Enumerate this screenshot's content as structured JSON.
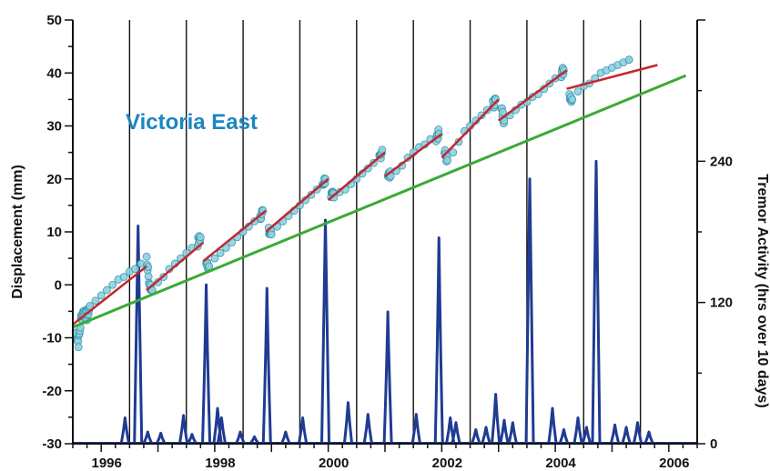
{
  "chart_data": {
    "type": "line",
    "annotation": "Victoria East",
    "ylabel": "Displacement (mm)",
    "y2label": "Tremor Activity (hrs over 10 days)",
    "xlim": [
      1995.5,
      2006.5
    ],
    "ylim": [
      -30,
      50
    ],
    "y2lim": [
      0,
      360
    ],
    "x_ticks": [
      1996,
      1998,
      2000,
      2002,
      2004,
      2006
    ],
    "x_tick_labels": [
      "1996",
      "1998",
      "2000",
      "2002",
      "2004",
      "2006"
    ],
    "y_ticks": [
      -30,
      -20,
      -10,
      0,
      10,
      20,
      30,
      40,
      50
    ],
    "y_tick_labels": [
      "-30",
      "-20",
      "-10",
      "0",
      "10",
      "20",
      "30",
      "40",
      "50"
    ],
    "y2_ticks": [
      0,
      120,
      240
    ],
    "y2_tick_labels": [
      "0",
      "120",
      "240"
    ],
    "event_lines": [
      1996.5,
      1997.5,
      1998.5,
      1999.5,
      2000.5,
      2001.5,
      2002.5,
      2003.5,
      2004.5,
      2005.5
    ],
    "background_trend": {
      "x": [
        1995.5,
        2006.3
      ],
      "y": [
        -8,
        39.5
      ]
    },
    "segment_fits": [
      {
        "x": [
          1995.5,
          1996.8
        ],
        "y": [
          -7.5,
          3.5
        ]
      },
      {
        "x": [
          1996.8,
          1997.8
        ],
        "y": [
          -1,
          8
        ]
      },
      {
        "x": [
          1997.8,
          1998.9
        ],
        "y": [
          4.5,
          14
        ]
      },
      {
        "x": [
          1998.9,
          2000.0
        ],
        "y": [
          10,
          20
        ]
      },
      {
        "x": [
          2000.0,
          2001.0
        ],
        "y": [
          16,
          25
        ]
      },
      {
        "x": [
          2001.0,
          2002.0
        ],
        "y": [
          20.5,
          28.5
        ]
      },
      {
        "x": [
          2002.0,
          2003.0
        ],
        "y": [
          24,
          35
        ]
      },
      {
        "x": [
          2003.0,
          2004.2
        ],
        "y": [
          31,
          40.5
        ]
      },
      {
        "x": [
          2004.2,
          2005.8
        ],
        "y": [
          37,
          41.5
        ]
      }
    ],
    "gps_points": [
      [
        1995.55,
        -9
      ],
      [
        1995.6,
        -11
      ],
      [
        1995.65,
        -6
      ],
      [
        1995.7,
        -5
      ],
      [
        1995.75,
        -6
      ],
      [
        1995.8,
        -4
      ],
      [
        1995.9,
        -3
      ],
      [
        1996.0,
        -2
      ],
      [
        1996.1,
        -1
      ],
      [
        1996.2,
        0
      ],
      [
        1996.3,
        1
      ],
      [
        1996.4,
        1.5
      ],
      [
        1996.5,
        2.5
      ],
      [
        1996.6,
        3
      ],
      [
        1996.7,
        4
      ],
      [
        1996.8,
        5
      ],
      [
        1996.85,
        0
      ],
      [
        1996.9,
        -1
      ],
      [
        1997.0,
        0.5
      ],
      [
        1997.1,
        1.5
      ],
      [
        1997.2,
        3
      ],
      [
        1997.3,
        4
      ],
      [
        1997.4,
        5
      ],
      [
        1997.5,
        6
      ],
      [
        1997.6,
        7
      ],
      [
        1997.7,
        8
      ],
      [
        1997.75,
        9
      ],
      [
        1997.85,
        4
      ],
      [
        1997.9,
        3.5
      ],
      [
        1998.0,
        5
      ],
      [
        1998.1,
        6
      ],
      [
        1998.2,
        7
      ],
      [
        1998.3,
        8
      ],
      [
        1998.4,
        9
      ],
      [
        1998.5,
        10
      ],
      [
        1998.6,
        11
      ],
      [
        1998.7,
        12
      ],
      [
        1998.8,
        13
      ],
      [
        1998.85,
        14
      ],
      [
        1998.95,
        10
      ],
      [
        1999.0,
        9.5
      ],
      [
        1999.1,
        11
      ],
      [
        1999.2,
        12
      ],
      [
        1999.3,
        13
      ],
      [
        1999.4,
        14
      ],
      [
        1999.5,
        15
      ],
      [
        1999.6,
        16
      ],
      [
        1999.7,
        17
      ],
      [
        1999.8,
        18
      ],
      [
        1999.9,
        19
      ],
      [
        1999.95,
        20
      ],
      [
        2000.05,
        17
      ],
      [
        2000.1,
        16.5
      ],
      [
        2000.2,
        17.5
      ],
      [
        2000.3,
        18
      ],
      [
        2000.4,
        19
      ],
      [
        2000.5,
        20
      ],
      [
        2000.6,
        21
      ],
      [
        2000.7,
        22
      ],
      [
        2000.8,
        23
      ],
      [
        2000.9,
        24
      ],
      [
        2000.95,
        25.5
      ],
      [
        2001.05,
        21
      ],
      [
        2001.1,
        20.5
      ],
      [
        2001.2,
        21.5
      ],
      [
        2001.3,
        22.5
      ],
      [
        2001.4,
        24
      ],
      [
        2001.5,
        25
      ],
      [
        2001.6,
        26
      ],
      [
        2001.7,
        26.5
      ],
      [
        2001.8,
        27.5
      ],
      [
        2001.9,
        28
      ],
      [
        2001.95,
        28.5
      ],
      [
        2002.05,
        25
      ],
      [
        2002.1,
        23.5
      ],
      [
        2002.2,
        25
      ],
      [
        2002.3,
        27
      ],
      [
        2002.4,
        29
      ],
      [
        2002.5,
        30
      ],
      [
        2002.6,
        31
      ],
      [
        2002.7,
        32
      ],
      [
        2002.8,
        33
      ],
      [
        2002.9,
        34
      ],
      [
        2002.95,
        35
      ],
      [
        2003.05,
        33
      ],
      [
        2003.1,
        31
      ],
      [
        2003.2,
        32
      ],
      [
        2003.3,
        33
      ],
      [
        2003.4,
        34
      ],
      [
        2003.5,
        34.5
      ],
      [
        2003.6,
        35.5
      ],
      [
        2003.7,
        36
      ],
      [
        2003.8,
        37
      ],
      [
        2003.9,
        38
      ],
      [
        2004.0,
        39
      ],
      [
        2004.1,
        40
      ],
      [
        2004.15,
        40.5
      ],
      [
        2004.25,
        36
      ],
      [
        2004.3,
        35
      ],
      [
        2004.4,
        36.5
      ],
      [
        2004.5,
        37.5
      ],
      [
        2004.6,
        38
      ],
      [
        2004.7,
        39
      ],
      [
        2004.8,
        40
      ],
      [
        2004.9,
        40.5
      ],
      [
        2005.0,
        41
      ],
      [
        2005.1,
        41.5
      ],
      [
        2005.2,
        42
      ],
      [
        2005.3,
        42.5
      ]
    ],
    "tremor_series": {
      "x": [
        1995.5,
        1995.9,
        1996.1,
        1996.15,
        1996.18,
        1996.25,
        1996.35,
        1996.37,
        1996.4,
        1996.45,
        1996.55,
        1996.6,
        1996.65,
        1996.7,
        1996.8,
        1996.9,
        1996.95,
        1997.0,
        1997.1,
        1997.15,
        1997.2,
        1997.35,
        1997.4,
        1997.45,
        1997.55,
        1997.65,
        1997.7,
        1997.75,
        1997.8,
        1997.85,
        1997.9,
        1997.95,
        1998.1,
        1998.15,
        1998.2,
        1998.3,
        1998.35,
        1998.4,
        1998.6,
        1998.63,
        1998.66,
        1998.8,
        1998.85,
        1998.9,
        1999.0,
        1999.05,
        1999.1,
        1999.2,
        1999.4,
        1999.45,
        1999.5,
        1999.7,
        1999.73,
        1999.76,
        2000.0,
        2000.05,
        2000.1,
        2000.2,
        2000.25,
        2000.3,
        2000.5,
        2000.55,
        2000.6,
        2000.8,
        2000.85,
        2000.9,
        2001.0,
        2001.05,
        2001.1,
        2001.3,
        2001.35,
        2001.4,
        2001.6,
        2001.65,
        2001.7,
        2001.95,
        2002.0,
        2002.05,
        2002.3,
        2002.35,
        2002.4,
        2002.55,
        2002.6,
        2002.65,
        2002.7,
        2002.75,
        2002.8,
        2002.95,
        2003.0,
        2003.05,
        2003.15,
        2003.2,
        2003.25,
        2003.4,
        2003.45,
        2003.5,
        2003.6,
        2003.65,
        2003.7,
        2003.8,
        2003.9,
        2003.95,
        2004.0,
        2004.2,
        2004.25,
        2004.3,
        2004.4,
        2004.45,
        2004.5,
        2004.6,
        2004.65,
        2004.7,
        2004.75,
        2004.8,
        2004.9,
        2004.95,
        2005.0,
        2005.1,
        2005.15,
        2005.2,
        2005.35,
        2005.4,
        2005.45,
        2005.55,
        2005.6,
        2005.65,
        2005.7,
        2005.75,
        2006.3
      ],
      "y": [
        0,
        0,
        0,
        0,
        0,
        18,
        0,
        0,
        0,
        0,
        0,
        0,
        0,
        0,
        0,
        0,
        0,
        0,
        10,
        8,
        0,
        0,
        0,
        0,
        0,
        0,
        0,
        0,
        8,
        6,
        0,
        0,
        0,
        0,
        0,
        0,
        0,
        0,
        0,
        0,
        0,
        0,
        0,
        0,
        0,
        0,
        0,
        0,
        0,
        0,
        0,
        0,
        0,
        0,
        0,
        0,
        0,
        0,
        0,
        0,
        0,
        0,
        0,
        0,
        0,
        0,
        0,
        0,
        0,
        0,
        0,
        0,
        0,
        0,
        0,
        0,
        0,
        0,
        0,
        0,
        0,
        0,
        0,
        0,
        0,
        0,
        0,
        0,
        0,
        0,
        0,
        0,
        0,
        0,
        0,
        0,
        0,
        0,
        0,
        0,
        0,
        0,
        0,
        0,
        0,
        0,
        0,
        0,
        0,
        0,
        0,
        0,
        0,
        0,
        0,
        0,
        0,
        0,
        0,
        0,
        0,
        0,
        0,
        0,
        0,
        0,
        0,
        0,
        0
      ]
    },
    "tremor_peaks": [
      [
        1996.42,
        22
      ],
      [
        1996.65,
        185
      ],
      [
        1996.82,
        10
      ],
      [
        1997.05,
        9
      ],
      [
        1997.45,
        24
      ],
      [
        1997.6,
        8
      ],
      [
        1997.85,
        135
      ],
      [
        1998.05,
        30
      ],
      [
        1998.12,
        22
      ],
      [
        1998.45,
        10
      ],
      [
        1998.7,
        6
      ],
      [
        1998.92,
        132
      ],
      [
        1999.25,
        10
      ],
      [
        1999.55,
        22
      ],
      [
        1999.95,
        190
      ],
      [
        2000.35,
        35
      ],
      [
        2000.7,
        25
      ],
      [
        2001.05,
        112
      ],
      [
        2001.55,
        25
      ],
      [
        2001.95,
        175
      ],
      [
        2002.15,
        22
      ],
      [
        2002.25,
        18
      ],
      [
        2002.6,
        12
      ],
      [
        2002.78,
        14
      ],
      [
        2002.95,
        42
      ],
      [
        2003.1,
        20
      ],
      [
        2003.25,
        18
      ],
      [
        2003.55,
        225
      ],
      [
        2003.95,
        30
      ],
      [
        2004.15,
        12
      ],
      [
        2004.4,
        22
      ],
      [
        2004.55,
        14
      ],
      [
        2004.72,
        240
      ],
      [
        2005.05,
        16
      ],
      [
        2005.25,
        14
      ],
      [
        2005.45,
        18
      ],
      [
        2005.65,
        10
      ]
    ]
  },
  "colors": {
    "points_fill": "#8fd1df",
    "points_stroke": "#2f8fa8",
    "segment_fit": "#c4262e",
    "background_trend": "#3aaa35",
    "tremor": "#1f3b93",
    "annotation": "#1b86c0",
    "event_lines": "#111111",
    "axes": "#111111"
  }
}
